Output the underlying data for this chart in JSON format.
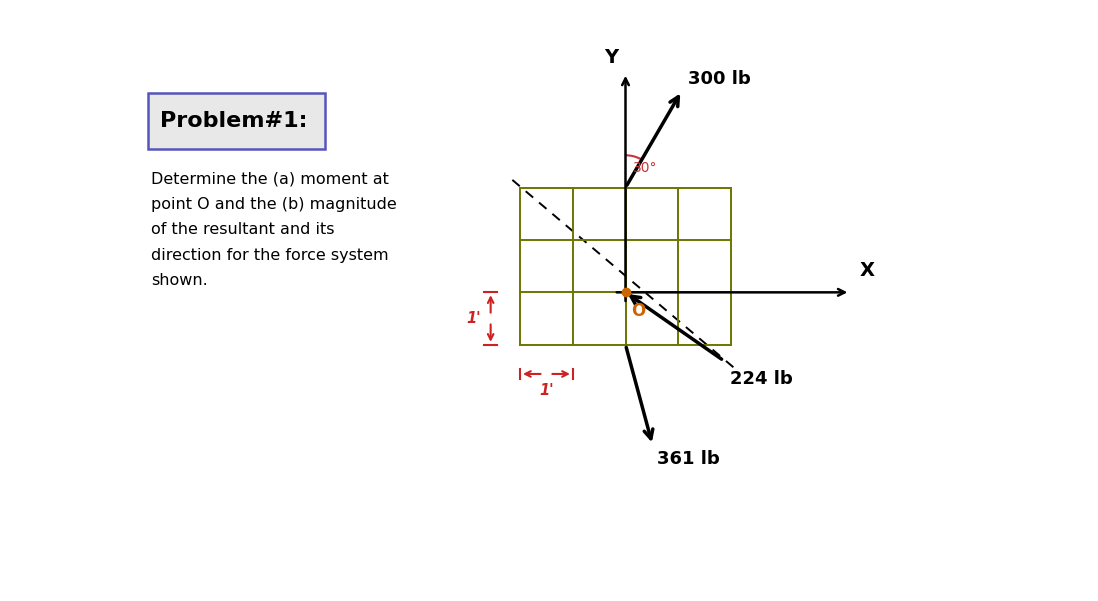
{
  "title": "Problem#1:",
  "description_lines": [
    "Determine the (a) moment at",
    "point O and the (b) magnitude",
    "of the resultant and its",
    "direction for the force system",
    "shown."
  ],
  "background_color": "#ffffff",
  "title_box_color": "#e8e8e8",
  "title_box_border": "#5555bb",
  "grid_color": "#6b7700",
  "O_color": "#cc6600",
  "angle_color": "#cc3333",
  "dim_color": "#cc2222",
  "force_300_label": "300 lb",
  "force_361_label": "361 lb",
  "force_224_label": "224 lb",
  "angle_label": "30°",
  "dim_label": "1'",
  "O_label": "O",
  "X_label": "X",
  "Y_label": "Y",
  "ox": 6.3,
  "oy": 3.15,
  "cell": 0.68
}
